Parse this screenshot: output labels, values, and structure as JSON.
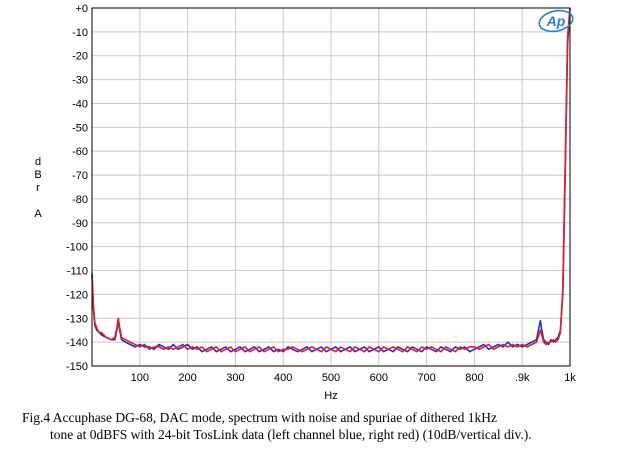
{
  "chart_data": {
    "type": "line",
    "title": "",
    "xlabel": "Hz",
    "ylabel": [
      "d",
      "B",
      "r",
      "",
      "A"
    ],
    "xlim": [
      0,
      1000
    ],
    "ylim": [
      -150,
      0
    ],
    "x_ticks": [
      {
        "value": 100,
        "label": "100"
      },
      {
        "value": 200,
        "label": "200"
      },
      {
        "value": 300,
        "label": "300"
      },
      {
        "value": 400,
        "label": "400"
      },
      {
        "value": 500,
        "label": "500"
      },
      {
        "value": 600,
        "label": "600"
      },
      {
        "value": 700,
        "label": "700"
      },
      {
        "value": 800,
        "label": "800"
      },
      {
        "value": 900,
        "label": ".9k"
      },
      {
        "value": 1000,
        "label": "1k"
      }
    ],
    "y_ticks": [
      {
        "value": 0,
        "label": "+0"
      },
      {
        "value": -10,
        "label": "-10"
      },
      {
        "value": -20,
        "label": "-20"
      },
      {
        "value": -30,
        "label": "-30"
      },
      {
        "value": -40,
        "label": "-40"
      },
      {
        "value": -50,
        "label": "-50"
      },
      {
        "value": -60,
        "label": "-60"
      },
      {
        "value": -70,
        "label": "-70"
      },
      {
        "value": -80,
        "label": "-80"
      },
      {
        "value": -90,
        "label": "-90"
      },
      {
        "value": -100,
        "label": "-100"
      },
      {
        "value": -110,
        "label": "-110"
      },
      {
        "value": -120,
        "label": "-120"
      },
      {
        "value": -130,
        "label": "-130"
      },
      {
        "value": -140,
        "label": "-140"
      },
      {
        "value": -150,
        "label": "-150"
      }
    ],
    "grid": true,
    "logo": "Ap",
    "series": [
      {
        "name": "Left channel",
        "color": "#1f2fd6",
        "points": [
          [
            0,
            -112
          ],
          [
            3,
            -126
          ],
          [
            6,
            -133
          ],
          [
            10,
            -135
          ],
          [
            15,
            -136
          ],
          [
            20,
            -137
          ],
          [
            30,
            -138
          ],
          [
            40,
            -139
          ],
          [
            48,
            -139
          ],
          [
            52,
            -135
          ],
          [
            55,
            -131
          ],
          [
            58,
            -135
          ],
          [
            62,
            -139
          ],
          [
            70,
            -140
          ],
          [
            80,
            -141
          ],
          [
            90,
            -142
          ],
          [
            100,
            -141
          ],
          [
            110,
            -142
          ],
          [
            120,
            -142
          ],
          [
            130,
            -143
          ],
          [
            140,
            -141
          ],
          [
            150,
            -142
          ],
          [
            160,
            -143
          ],
          [
            170,
            -141
          ],
          [
            180,
            -143
          ],
          [
            190,
            -142
          ],
          [
            200,
            -141
          ],
          [
            210,
            -143
          ],
          [
            220,
            -142
          ],
          [
            230,
            -144
          ],
          [
            240,
            -143
          ],
          [
            250,
            -142
          ],
          [
            260,
            -144
          ],
          [
            270,
            -143
          ],
          [
            280,
            -142
          ],
          [
            290,
            -144
          ],
          [
            300,
            -143
          ],
          [
            310,
            -142
          ],
          [
            320,
            -144
          ],
          [
            330,
            -143
          ],
          [
            340,
            -142
          ],
          [
            350,
            -144
          ],
          [
            360,
            -143
          ],
          [
            370,
            -142
          ],
          [
            380,
            -144
          ],
          [
            390,
            -143
          ],
          [
            400,
            -144
          ],
          [
            410,
            -142
          ],
          [
            420,
            -143
          ],
          [
            430,
            -144
          ],
          [
            440,
            -143
          ],
          [
            450,
            -142
          ],
          [
            460,
            -144
          ],
          [
            470,
            -143
          ],
          [
            480,
            -142
          ],
          [
            490,
            -144
          ],
          [
            500,
            -143
          ],
          [
            510,
            -142
          ],
          [
            520,
            -144
          ],
          [
            530,
            -143
          ],
          [
            540,
            -142
          ],
          [
            550,
            -144
          ],
          [
            560,
            -143
          ],
          [
            570,
            -142
          ],
          [
            580,
            -144
          ],
          [
            590,
            -143
          ],
          [
            600,
            -142
          ],
          [
            610,
            -144
          ],
          [
            620,
            -143
          ],
          [
            630,
            -144
          ],
          [
            640,
            -142
          ],
          [
            650,
            -143
          ],
          [
            660,
            -144
          ],
          [
            670,
            -142
          ],
          [
            680,
            -143
          ],
          [
            690,
            -144
          ],
          [
            700,
            -142
          ],
          [
            710,
            -143
          ],
          [
            720,
            -144
          ],
          [
            730,
            -142
          ],
          [
            740,
            -143
          ],
          [
            750,
            -144
          ],
          [
            760,
            -142
          ],
          [
            770,
            -143
          ],
          [
            780,
            -142
          ],
          [
            790,
            -144
          ],
          [
            800,
            -143
          ],
          [
            810,
            -142
          ],
          [
            820,
            -141
          ],
          [
            830,
            -143
          ],
          [
            840,
            -142
          ],
          [
            850,
            -141
          ],
          [
            860,
            -142
          ],
          [
            870,
            -140
          ],
          [
            880,
            -142
          ],
          [
            890,
            -141
          ],
          [
            900,
            -142
          ],
          [
            910,
            -141
          ],
          [
            920,
            -140
          ],
          [
            930,
            -139
          ],
          [
            935,
            -134
          ],
          [
            938,
            -131
          ],
          [
            941,
            -135
          ],
          [
            945,
            -139
          ],
          [
            950,
            -140
          ],
          [
            955,
            -141
          ],
          [
            960,
            -139
          ],
          [
            965,
            -140
          ],
          [
            970,
            -139
          ],
          [
            975,
            -138
          ],
          [
            980,
            -135
          ],
          [
            985,
            -120
          ],
          [
            990,
            -70
          ],
          [
            995,
            -15
          ],
          [
            1000,
            -2
          ]
        ]
      },
      {
        "name": "Right channel",
        "color": "#e21f1f",
        "points": [
          [
            0,
            -111
          ],
          [
            3,
            -125
          ],
          [
            6,
            -132
          ],
          [
            10,
            -134
          ],
          [
            15,
            -136
          ],
          [
            20,
            -136
          ],
          [
            30,
            -138
          ],
          [
            40,
            -139
          ],
          [
            48,
            -138
          ],
          [
            52,
            -134
          ],
          [
            55,
            -130
          ],
          [
            58,
            -134
          ],
          [
            62,
            -138
          ],
          [
            70,
            -139
          ],
          [
            80,
            -140
          ],
          [
            90,
            -141
          ],
          [
            100,
            -142
          ],
          [
            110,
            -141
          ],
          [
            120,
            -143
          ],
          [
            130,
            -142
          ],
          [
            140,
            -142
          ],
          [
            150,
            -143
          ],
          [
            160,
            -142
          ],
          [
            170,
            -143
          ],
          [
            180,
            -142
          ],
          [
            190,
            -141
          ],
          [
            200,
            -143
          ],
          [
            210,
            -142
          ],
          [
            220,
            -143
          ],
          [
            230,
            -142
          ],
          [
            240,
            -144
          ],
          [
            250,
            -143
          ],
          [
            260,
            -142
          ],
          [
            270,
            -144
          ],
          [
            280,
            -143
          ],
          [
            290,
            -142
          ],
          [
            300,
            -144
          ],
          [
            310,
            -143
          ],
          [
            320,
            -142
          ],
          [
            330,
            -144
          ],
          [
            340,
            -143
          ],
          [
            350,
            -142
          ],
          [
            360,
            -144
          ],
          [
            370,
            -143
          ],
          [
            380,
            -142
          ],
          [
            390,
            -144
          ],
          [
            400,
            -143
          ],
          [
            410,
            -143
          ],
          [
            420,
            -142
          ],
          [
            430,
            -143
          ],
          [
            440,
            -144
          ],
          [
            450,
            -143
          ],
          [
            460,
            -142
          ],
          [
            470,
            -143
          ],
          [
            480,
            -144
          ],
          [
            490,
            -142
          ],
          [
            500,
            -143
          ],
          [
            510,
            -144
          ],
          [
            520,
            -142
          ],
          [
            530,
            -143
          ],
          [
            540,
            -144
          ],
          [
            550,
            -142
          ],
          [
            560,
            -143
          ],
          [
            570,
            -144
          ],
          [
            580,
            -142
          ],
          [
            590,
            -143
          ],
          [
            600,
            -144
          ],
          [
            610,
            -142
          ],
          [
            620,
            -143
          ],
          [
            630,
            -142
          ],
          [
            640,
            -143
          ],
          [
            650,
            -144
          ],
          [
            660,
            -142
          ],
          [
            670,
            -143
          ],
          [
            680,
            -144
          ],
          [
            690,
            -142
          ],
          [
            700,
            -143
          ],
          [
            710,
            -142
          ],
          [
            720,
            -143
          ],
          [
            730,
            -144
          ],
          [
            740,
            -142
          ],
          [
            750,
            -143
          ],
          [
            760,
            -144
          ],
          [
            770,
            -142
          ],
          [
            780,
            -143
          ],
          [
            790,
            -142
          ],
          [
            800,
            -142
          ],
          [
            810,
            -143
          ],
          [
            820,
            -142
          ],
          [
            830,
            -141
          ],
          [
            840,
            -143
          ],
          [
            850,
            -142
          ],
          [
            860,
            -141
          ],
          [
            870,
            -142
          ],
          [
            880,
            -141
          ],
          [
            890,
            -142
          ],
          [
            900,
            -141
          ],
          [
            910,
            -142
          ],
          [
            920,
            -141
          ],
          [
            930,
            -140
          ],
          [
            935,
            -137
          ],
          [
            938,
            -135
          ],
          [
            941,
            -137
          ],
          [
            945,
            -140
          ],
          [
            950,
            -141
          ],
          [
            955,
            -140
          ],
          [
            960,
            -140
          ],
          [
            965,
            -139
          ],
          [
            970,
            -140
          ],
          [
            975,
            -139
          ],
          [
            980,
            -136
          ],
          [
            985,
            -118
          ],
          [
            990,
            -65
          ],
          [
            995,
            -12
          ],
          [
            1000,
            0
          ]
        ]
      }
    ]
  },
  "caption": {
    "line1": "Fig.4 Accuphase DG-68, DAC mode, spectrum with noise and spuriae of dithered 1kHz",
    "line2": "tone at 0dBFS with 24-bit TosLink data (left channel blue, right red) (10dB/vertical div.)."
  }
}
